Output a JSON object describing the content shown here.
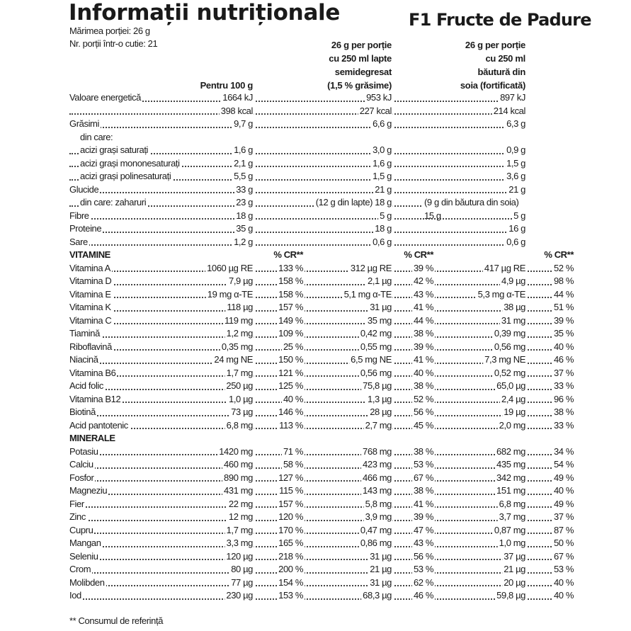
{
  "title": "Informații nutriționale",
  "product": "F1 Fructe de Padure",
  "serving_size": "Mărimea porției: 26 g",
  "servings_per_box": "Nr. porții într-o cutie: 21",
  "columns": {
    "col1": [
      "Pentru 100 g"
    ],
    "col2": [
      "26 g per porție",
      "cu 250 ml lapte",
      "semidegresat",
      "(1,5 % grăsime)"
    ],
    "col3": [
      "26 g per porție",
      "cu 250 ml",
      "băutură din",
      "soia (fortificată)"
    ]
  },
  "cr_label": "% CR**",
  "rows": [
    {
      "label": "Valoare energetică",
      "v": [
        "1664 kJ",
        "953 kJ",
        "897 kJ"
      ]
    },
    {
      "label": "",
      "v": [
        "398 kcal",
        "227 kcal",
        "214 kcal"
      ]
    },
    {
      "label": "Grăsimi",
      "v": [
        "9,7 g",
        "6,6 g",
        "6,3 g"
      ]
    },
    {
      "label": "din care:",
      "indent": true,
      "nodots": true,
      "v": [
        "",
        "",
        ""
      ]
    },
    {
      "label": "acizi grași saturați",
      "indent": true,
      "v": [
        "1,6 g",
        "3,0 g",
        "0,9 g"
      ]
    },
    {
      "label": "acizi grași mononesaturați",
      "indent": true,
      "v": [
        "2,1 g",
        "1,6 g",
        "1,5 g"
      ]
    },
    {
      "label": "acizi grași polinesaturați",
      "indent": true,
      "v": [
        "5,5 g",
        "1,5 g",
        "3,6 g"
      ]
    },
    {
      "label": "Glucide",
      "v": [
        "33 g",
        "21 g",
        "21 g"
      ]
    },
    {
      "label": "din care: zaharuri",
      "indent": true,
      "v": [
        "23 g",
        "(12 g din lapte) 18 g",
        "(9 g din băutura din soia) 15 g"
      ]
    },
    {
      "label": "Fibre",
      "v": [
        "18 g",
        "5 g",
        "5 g"
      ]
    },
    {
      "label": "Proteine",
      "v": [
        "35 g",
        "18 g",
        "16 g"
      ]
    },
    {
      "label": "Sare",
      "v": [
        "1,2 g",
        "0,6 g",
        "0,6 g"
      ]
    }
  ],
  "vitamins": {
    "heading": "VITAMINE",
    "rows": [
      {
        "label": "Vitamina A",
        "v": [
          "1060 µg RE",
          "133 %",
          "312 µg RE",
          "39 %",
          "417 µg RE",
          "52 %"
        ]
      },
      {
        "label": "Vitamina D",
        "v": [
          "7,9 µg",
          "158 %",
          "2,1 µg",
          "42 %",
          "4,9 µg",
          "98 %"
        ]
      },
      {
        "label": "Vitamina E",
        "v": [
          "19 mg α-TE",
          "158 %",
          "5,1 mg α-TE",
          "43 %",
          "5,3 mg α-TE",
          "44 %"
        ]
      },
      {
        "label": "Vitamina K",
        "v": [
          "118 µg",
          "157 %",
          "31 µg",
          "41 %",
          "38 µg",
          "51 %"
        ]
      },
      {
        "label": "Vitamina C",
        "v": [
          "119 mg",
          "149 %",
          "35 mg",
          "44 %",
          "31 mg",
          "39 %"
        ]
      },
      {
        "label": "Tiamină",
        "v": [
          "1,2 mg",
          "109 %",
          "0,42 mg",
          "38 %",
          "0,39 mg",
          "35 %"
        ]
      },
      {
        "label": "Riboflavină",
        "v": [
          "0,35 mg",
          "25 %",
          "0,55 mg",
          "39 %",
          "0,56 mg",
          "40 %"
        ]
      },
      {
        "label": "Niacină",
        "v": [
          "24 mg NE",
          "150 %",
          "6,5 mg NE",
          "41 %",
          "7,3 mg NE",
          "46 %"
        ]
      },
      {
        "label": "Vitamina B6",
        "v": [
          "1,7 mg",
          "121 %",
          "0,56 mg",
          "40 %",
          "0,52 mg",
          "37 %"
        ]
      },
      {
        "label": "Acid folic",
        "v": [
          "250 µg",
          "125 %",
          "75,8 µg",
          "38 %",
          "65,0 µg",
          "33 %"
        ]
      },
      {
        "label": "Vitamina B12",
        "v": [
          "1,0 µg",
          "40 %",
          "1,3 µg",
          "52 %",
          "2,4 µg",
          "96 %"
        ]
      },
      {
        "label": "Biotină",
        "v": [
          "73 µg",
          "146 %",
          "28 µg",
          "56 %",
          "19 µg",
          "38 %"
        ]
      },
      {
        "label": "Acid pantotenic",
        "v": [
          "6,8 mg",
          "113 %",
          "2,7 mg",
          "45 %",
          "2,0 mg",
          "33 %"
        ]
      }
    ]
  },
  "minerals": {
    "heading": "MINERALE",
    "rows": [
      {
        "label": "Potasiu",
        "v": [
          "1420 mg",
          "71 %",
          "768 mg",
          "38 %",
          "682 mg",
          "34 %"
        ]
      },
      {
        "label": "Calciu",
        "v": [
          "460 mg",
          "58 %",
          "423 mg",
          "53 %",
          "435 mg",
          "54 %"
        ]
      },
      {
        "label": "Fosfor",
        "v": [
          "890 mg",
          "127 %",
          "466 mg",
          "67 %",
          "342 mg",
          "49 %"
        ]
      },
      {
        "label": "Magneziu",
        "v": [
          "431 mg",
          "115 %",
          "143 mg",
          "38 %",
          "151 mg",
          "40 %"
        ]
      },
      {
        "label": "Fier",
        "v": [
          "22 mg",
          "157 %",
          "5,8 mg",
          "41 %",
          "6,8 mg",
          "49 %"
        ]
      },
      {
        "label": "Zinc",
        "v": [
          "12 mg",
          "120 %",
          "3,9 mg",
          "39 %",
          "3,7 mg",
          "37 %"
        ]
      },
      {
        "label": "Cupru",
        "v": [
          "1,7 mg",
          "170 %",
          "0,47 mg",
          "47 %",
          "0,87 mg",
          "87 %"
        ]
      },
      {
        "label": "Mangan",
        "v": [
          "3,3 mg",
          "165 %",
          "0,86 mg",
          "43 %",
          "1,0 mg",
          "50 %"
        ]
      },
      {
        "label": "Seleniu",
        "v": [
          "120 µg",
          "218 %",
          "31 µg",
          "56 %",
          "37 µg",
          "67 %"
        ]
      },
      {
        "label": "Crom",
        "v": [
          "80 µg",
          "200 %",
          "21 µg",
          "53 %",
          "21 µg",
          "53 %"
        ]
      },
      {
        "label": "Molibden",
        "v": [
          "77 µg",
          "154 %",
          "31 µg",
          "62 %",
          "20 µg",
          "40 %"
        ]
      },
      {
        "label": "Iod",
        "v": [
          "230 µg",
          "153 %",
          "68,3 µg",
          "46 %",
          "59,8 µg",
          "40 %"
        ]
      }
    ]
  },
  "footnote": "** Consumul de referință"
}
